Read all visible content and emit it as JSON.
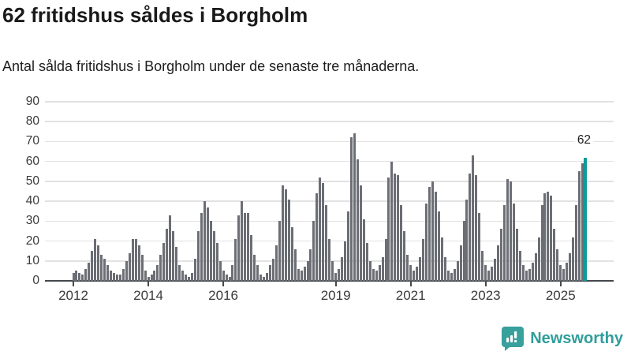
{
  "header": {
    "title": "62 fritidshus såldes i Borgholm",
    "subtitle": "Antal sålda fritidshus i Borgholm under de senaste tre månaderna."
  },
  "chart_data": {
    "type": "bar",
    "title": "62 fritidshus såldes i Borgholm",
    "subtitle": "Antal sålda fritidshus i Borgholm under de senaste tre månaderna.",
    "start_year": 2012,
    "frequency": "monthly",
    "values": [
      4,
      5,
      4,
      3,
      6,
      9,
      15,
      21,
      18,
      13,
      11,
      8,
      5,
      4,
      3,
      3,
      6,
      10,
      14,
      21,
      21,
      18,
      13,
      5,
      2,
      3,
      5,
      8,
      13,
      19,
      26,
      33,
      25,
      17,
      8,
      5,
      3,
      2,
      4,
      11,
      25,
      34,
      40,
      37,
      30,
      25,
      19,
      10,
      5,
      3,
      2,
      8,
      21,
      33,
      40,
      34,
      34,
      23,
      13,
      8,
      3,
      2,
      4,
      8,
      11,
      18,
      30,
      48,
      46,
      41,
      27,
      16,
      6,
      5,
      7,
      10,
      16,
      30,
      44,
      52,
      49,
      38,
      21,
      10,
      4,
      6,
      12,
      20,
      35,
      72,
      74,
      61,
      48,
      31,
      19,
      10,
      6,
      5,
      8,
      12,
      21,
      52,
      60,
      54,
      53,
      38,
      25,
      13,
      8,
      5,
      7,
      12,
      21,
      39,
      47,
      50,
      45,
      35,
      22,
      12,
      5,
      4,
      6,
      10,
      18,
      30,
      41,
      54,
      63,
      53,
      34,
      15,
      8,
      5,
      7,
      11,
      18,
      26,
      38,
      51,
      50,
      39,
      26,
      15,
      8,
      5,
      6,
      9,
      14,
      22,
      38,
      44,
      45,
      43,
      26,
      16,
      8,
      6,
      9,
      14,
      22,
      38,
      55,
      59,
      62
    ],
    "highlight_last": true,
    "highlight_value": 62,
    "annotation_label": "62",
    "ylim": [
      0,
      90
    ],
    "yticks": [
      0,
      10,
      20,
      30,
      40,
      50,
      60,
      70,
      80,
      90
    ],
    "x_tick_labels": [
      "2012",
      "2014",
      "2016",
      "2019",
      "2021",
      "2023",
      "2025"
    ],
    "grid": true,
    "legend": false,
    "colors": {
      "bar": "#6b6e74",
      "highlight": "#0c9b9b",
      "grid": "#e2e2e2",
      "axis": "#45484d",
      "tick_text": "#3a3a3a",
      "annotation_text": "#222222"
    }
  },
  "footer": {
    "brand": "Newsworthy",
    "brand_color": "#2f9e9b",
    "logo_icon": "newsworthy-speech-bubble-chart-icon"
  }
}
